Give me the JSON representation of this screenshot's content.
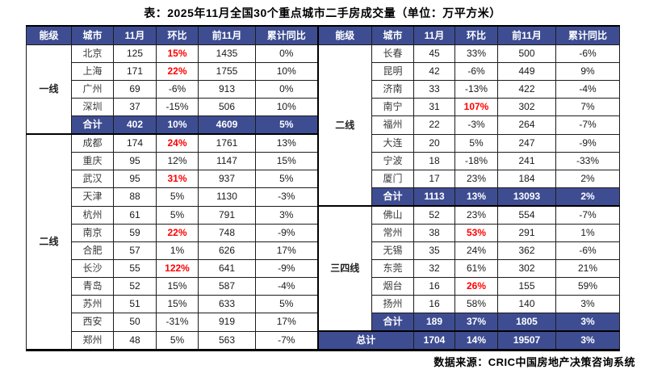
{
  "title": "表：2025年11月全国30个重点城市二手房成交量（单位：万平方米）",
  "source": "数据来源：CRIC中国房地产决策咨询系统",
  "headers": [
    "能级",
    "城市",
    "11月",
    "环比",
    "前11月",
    "累计同比"
  ],
  "subtotal_label": "合计",
  "total_label": "总计",
  "colors": {
    "accent_blue": "#3e4d92",
    "highlight_red": "#fe0000"
  },
  "left": {
    "groups": [
      {
        "tier": "一线",
        "rows": [
          {
            "city": "北京",
            "nov": "125",
            "mom": "15%",
            "mom_red": true,
            "prev11": "1435",
            "yoy": "0%"
          },
          {
            "city": "上海",
            "nov": "171",
            "mom": "22%",
            "mom_red": true,
            "prev11": "1755",
            "yoy": "10%"
          },
          {
            "city": "广州",
            "nov": "69",
            "mom": "-6%",
            "mom_red": false,
            "prev11": "913",
            "yoy": "0%"
          },
          {
            "city": "深圳",
            "nov": "37",
            "mom": "-15%",
            "mom_red": false,
            "prev11": "506",
            "yoy": "10%"
          }
        ],
        "subtotal": {
          "nov": "402",
          "mom": "10%",
          "prev11": "4609",
          "yoy": "5%"
        }
      },
      {
        "tier": "二线",
        "rows": [
          {
            "city": "成都",
            "nov": "174",
            "mom": "24%",
            "mom_red": true,
            "prev11": "1761",
            "yoy": "13%"
          },
          {
            "city": "重庆",
            "nov": "95",
            "mom": "12%",
            "mom_red": false,
            "prev11": "1147",
            "yoy": "15%"
          },
          {
            "city": "武汉",
            "nov": "95",
            "mom": "31%",
            "mom_red": true,
            "prev11": "937",
            "yoy": "5%"
          },
          {
            "city": "天津",
            "nov": "88",
            "mom": "5%",
            "mom_red": false,
            "prev11": "1130",
            "yoy": "-3%"
          },
          {
            "city": "杭州",
            "nov": "61",
            "mom": "5%",
            "mom_red": false,
            "prev11": "791",
            "yoy": "3%"
          },
          {
            "city": "南京",
            "nov": "59",
            "mom": "22%",
            "mom_red": true,
            "prev11": "748",
            "yoy": "-9%"
          },
          {
            "city": "合肥",
            "nov": "57",
            "mom": "1%",
            "mom_red": false,
            "prev11": "626",
            "yoy": "17%"
          },
          {
            "city": "长沙",
            "nov": "55",
            "mom": "122%",
            "mom_red": true,
            "prev11": "641",
            "yoy": "-9%"
          },
          {
            "city": "青岛",
            "nov": "52",
            "mom": "15%",
            "mom_red": false,
            "prev11": "587",
            "yoy": "-4%"
          },
          {
            "city": "苏州",
            "nov": "51",
            "mom": "15%",
            "mom_red": false,
            "prev11": "633",
            "yoy": "5%"
          },
          {
            "city": "西安",
            "nov": "50",
            "mom": "-31%",
            "mom_red": false,
            "prev11": "919",
            "yoy": "17%"
          },
          {
            "city": "郑州",
            "nov": "48",
            "mom": "5%",
            "mom_red": false,
            "prev11": "563",
            "yoy": "-7%"
          }
        ],
        "subtotal": null
      }
    ]
  },
  "right": {
    "groups": [
      {
        "tier": "二线",
        "rows": [
          {
            "city": "长春",
            "nov": "45",
            "mom": "33%",
            "mom_red": false,
            "prev11": "500",
            "yoy": "-6%"
          },
          {
            "city": "昆明",
            "nov": "42",
            "mom": "-6%",
            "mom_red": false,
            "prev11": "449",
            "yoy": "9%"
          },
          {
            "city": "济南",
            "nov": "33",
            "mom": "-13%",
            "mom_red": false,
            "prev11": "422",
            "yoy": "-4%"
          },
          {
            "city": "南宁",
            "nov": "31",
            "mom": "107%",
            "mom_red": true,
            "prev11": "302",
            "yoy": "7%"
          },
          {
            "city": "福州",
            "nov": "22",
            "mom": "-3%",
            "mom_red": false,
            "prev11": "264",
            "yoy": "-7%"
          },
          {
            "city": "大连",
            "nov": "20",
            "mom": "5%",
            "mom_red": false,
            "prev11": "247",
            "yoy": "-9%"
          },
          {
            "city": "宁波",
            "nov": "18",
            "mom": "-18%",
            "mom_red": false,
            "prev11": "241",
            "yoy": "-33%"
          },
          {
            "city": "厦门",
            "nov": "17",
            "mom": "23%",
            "mom_red": false,
            "prev11": "184",
            "yoy": "2%"
          }
        ],
        "subtotal": {
          "nov": "1113",
          "mom": "13%",
          "prev11": "13093",
          "yoy": "2%"
        }
      },
      {
        "tier": "三四线",
        "rows": [
          {
            "city": "佛山",
            "nov": "52",
            "mom": "23%",
            "mom_red": false,
            "prev11": "554",
            "yoy": "-7%"
          },
          {
            "city": "常州",
            "nov": "38",
            "mom": "53%",
            "mom_red": true,
            "prev11": "291",
            "yoy": "1%"
          },
          {
            "city": "无锡",
            "nov": "35",
            "mom": "24%",
            "mom_red": false,
            "prev11": "362",
            "yoy": "-6%"
          },
          {
            "city": "东莞",
            "nov": "32",
            "mom": "61%",
            "mom_red": false,
            "prev11": "302",
            "yoy": "21%"
          },
          {
            "city": "烟台",
            "nov": "16",
            "mom": "26%",
            "mom_red": true,
            "prev11": "155",
            "yoy": "59%"
          },
          {
            "city": "扬州",
            "nov": "16",
            "mom": "58%",
            "mom_red": false,
            "prev11": "140",
            "yoy": "3%"
          }
        ],
        "subtotal": {
          "nov": "189",
          "mom": "37%",
          "prev11": "1805",
          "yoy": "3%"
        }
      }
    ],
    "total": {
      "nov": "1704",
      "mom": "14%",
      "prev11": "19507",
      "yoy": "3%"
    }
  }
}
